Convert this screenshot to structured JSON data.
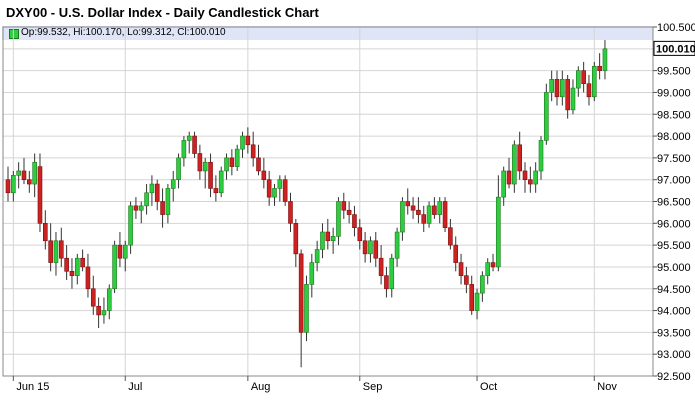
{
  "header": {
    "title": "DXY00 - U.S. Dollar Index - Daily Candlestick Chart",
    "ohlc": "Op:99.532, Hi:100.170, Lo:99.312, Cl:100.010"
  },
  "colors": {
    "up": "#2ecc40",
    "down": "#cc2222",
    "grid": "#d4d4d4",
    "wick": "#333333"
  },
  "chart_data": {
    "type": "candlestick",
    "title": "DXY00 - U.S. Dollar Index - Daily Candlestick Chart",
    "ylim": [
      92.5,
      100.5
    ],
    "y_ticks": [
      "100.500",
      "100.000",
      "99.500",
      "99.000",
      "98.500",
      "98.000",
      "97.500",
      "97.000",
      "96.500",
      "96.000",
      "95.500",
      "95.000",
      "94.500",
      "94.000",
      "93.500",
      "93.000",
      "92.500"
    ],
    "x_labels": [
      "Jun 15",
      "Jul",
      "Aug",
      "Sep",
      "Oct",
      "Nov"
    ],
    "x_label_index": [
      1,
      22,
      45,
      66,
      88,
      110
    ],
    "last_price": "100.010",
    "grid": true,
    "candles": [
      [
        97.0,
        97.3,
        96.5,
        96.7
      ],
      [
        96.7,
        97.2,
        96.5,
        97.1
      ],
      [
        97.1,
        97.4,
        96.8,
        97.2
      ],
      [
        97.2,
        97.5,
        96.9,
        97.0
      ],
      [
        97.0,
        97.2,
        96.7,
        96.9
      ],
      [
        96.9,
        97.6,
        96.6,
        97.4
      ],
      [
        97.3,
        97.6,
        95.8,
        96.0
      ],
      [
        96.0,
        96.3,
        95.4,
        95.6
      ],
      [
        95.6,
        96.0,
        94.9,
        95.1
      ],
      [
        95.1,
        95.8,
        94.8,
        95.6
      ],
      [
        95.6,
        95.9,
        95.0,
        95.2
      ],
      [
        95.2,
        95.5,
        94.7,
        94.9
      ],
      [
        94.9,
        95.2,
        94.5,
        94.8
      ],
      [
        94.8,
        95.3,
        94.6,
        95.2
      ],
      [
        95.2,
        95.4,
        94.9,
        95.0
      ],
      [
        95.0,
        95.3,
        94.3,
        94.5
      ],
      [
        94.5,
        94.8,
        93.9,
        94.1
      ],
      [
        94.1,
        94.3,
        93.6,
        93.9
      ],
      [
        93.9,
        94.3,
        93.7,
        94.0
      ],
      [
        94.0,
        94.6,
        93.8,
        94.5
      ],
      [
        94.5,
        95.6,
        94.4,
        95.5
      ],
      [
        95.5,
        95.8,
        95.0,
        95.2
      ],
      [
        95.2,
        95.6,
        94.9,
        95.5
      ],
      [
        95.5,
        96.5,
        95.3,
        96.4
      ],
      [
        96.4,
        96.6,
        96.1,
        96.3
      ],
      [
        96.3,
        96.5,
        96.0,
        96.4
      ],
      [
        96.4,
        96.9,
        96.2,
        96.7
      ],
      [
        96.7,
        97.1,
        96.4,
        96.9
      ],
      [
        96.9,
        97.0,
        96.3,
        96.5
      ],
      [
        96.5,
        96.8,
        95.9,
        96.2
      ],
      [
        96.2,
        96.9,
        96.0,
        96.8
      ],
      [
        96.8,
        97.2,
        96.5,
        97.0
      ],
      [
        97.0,
        97.6,
        96.8,
        97.5
      ],
      [
        97.5,
        98.0,
        97.3,
        97.9
      ],
      [
        97.9,
        98.1,
        97.6,
        98.0
      ],
      [
        98.0,
        98.1,
        97.5,
        97.6
      ],
      [
        97.6,
        97.8,
        97.0,
        97.2
      ],
      [
        97.2,
        97.5,
        96.8,
        97.4
      ],
      [
        97.4,
        97.6,
        96.6,
        96.8
      ],
      [
        96.8,
        97.1,
        96.5,
        96.7
      ],
      [
        96.7,
        97.3,
        96.6,
        97.2
      ],
      [
        97.2,
        97.6,
        97.0,
        97.5
      ],
      [
        97.5,
        97.7,
        97.1,
        97.3
      ],
      [
        97.3,
        97.8,
        97.2,
        97.7
      ],
      [
        97.7,
        98.1,
        97.5,
        98.0
      ],
      [
        98.0,
        98.2,
        97.6,
        97.8
      ],
      [
        97.8,
        98.1,
        97.3,
        97.5
      ],
      [
        97.5,
        97.8,
        97.1,
        97.2
      ],
      [
        97.2,
        97.5,
        96.8,
        97.0
      ],
      [
        97.0,
        97.2,
        96.4,
        96.6
      ],
      [
        96.6,
        96.9,
        96.4,
        96.8
      ],
      [
        96.8,
        97.1,
        96.5,
        97.0
      ],
      [
        97.0,
        97.1,
        96.4,
        96.5
      ],
      [
        96.5,
        96.7,
        95.8,
        96.0
      ],
      [
        96.0,
        96.1,
        95.0,
        95.3
      ],
      [
        95.3,
        95.4,
        92.7,
        93.5
      ],
      [
        93.5,
        94.8,
        93.3,
        94.6
      ],
      [
        94.6,
        95.3,
        94.3,
        95.1
      ],
      [
        95.1,
        95.6,
        94.9,
        95.4
      ],
      [
        95.4,
        96.0,
        95.2,
        95.8
      ],
      [
        95.8,
        96.1,
        95.4,
        95.6
      ],
      [
        95.6,
        95.9,
        95.3,
        95.7
      ],
      [
        95.7,
        96.6,
        95.5,
        96.5
      ],
      [
        96.5,
        96.7,
        96.1,
        96.3
      ],
      [
        96.3,
        96.5,
        96.0,
        96.2
      ],
      [
        96.2,
        96.4,
        95.7,
        95.9
      ],
      [
        95.9,
        96.1,
        95.4,
        95.6
      ],
      [
        95.6,
        95.8,
        95.1,
        95.3
      ],
      [
        95.3,
        95.7,
        95.1,
        95.6
      ],
      [
        95.6,
        95.8,
        95.0,
        95.2
      ],
      [
        95.2,
        95.5,
        94.6,
        94.8
      ],
      [
        94.8,
        95.0,
        94.3,
        94.5
      ],
      [
        94.5,
        95.3,
        94.3,
        95.2
      ],
      [
        95.2,
        95.9,
        95.0,
        95.8
      ],
      [
        95.8,
        96.6,
        95.6,
        96.5
      ],
      [
        96.5,
        96.8,
        96.2,
        96.4
      ],
      [
        96.4,
        96.6,
        96.1,
        96.3
      ],
      [
        96.3,
        96.6,
        96.0,
        96.2
      ],
      [
        96.2,
        96.4,
        95.8,
        96.0
      ],
      [
        96.0,
        96.5,
        95.9,
        96.4
      ],
      [
        96.4,
        96.6,
        96.1,
        96.2
      ],
      [
        96.2,
        96.6,
        96.0,
        96.5
      ],
      [
        96.5,
        96.6,
        95.8,
        95.9
      ],
      [
        95.9,
        96.1,
        95.4,
        95.5
      ],
      [
        95.5,
        95.7,
        94.9,
        95.1
      ],
      [
        95.1,
        95.3,
        94.6,
        94.8
      ],
      [
        94.8,
        95.0,
        94.4,
        94.6
      ],
      [
        94.6,
        94.8,
        93.9,
        94.0
      ],
      [
        94.0,
        94.5,
        93.8,
        94.4
      ],
      [
        94.4,
        94.9,
        94.2,
        94.8
      ],
      [
        94.8,
        95.2,
        94.6,
        95.1
      ],
      [
        95.1,
        95.3,
        94.9,
        95.0
      ],
      [
        95.0,
        97.1,
        94.9,
        96.6
      ],
      [
        96.6,
        97.3,
        96.4,
        97.2
      ],
      [
        97.2,
        97.5,
        96.8,
        96.9
      ],
      [
        96.9,
        97.9,
        96.7,
        97.8
      ],
      [
        97.8,
        98.1,
        97.0,
        97.2
      ],
      [
        97.2,
        97.4,
        96.7,
        97.0
      ],
      [
        97.0,
        97.3,
        96.7,
        96.9
      ],
      [
        96.9,
        97.4,
        96.7,
        97.2
      ],
      [
        97.2,
        98.0,
        97.0,
        97.9
      ],
      [
        97.9,
        99.2,
        97.8,
        99.0
      ],
      [
        99.0,
        99.5,
        98.8,
        99.3
      ],
      [
        99.3,
        99.5,
        98.7,
        98.9
      ],
      [
        98.9,
        99.5,
        98.7,
        99.3
      ],
      [
        99.3,
        99.4,
        98.4,
        98.6
      ],
      [
        98.6,
        99.3,
        98.5,
        99.1
      ],
      [
        99.1,
        99.6,
        98.9,
        99.5
      ],
      [
        99.5,
        99.7,
        99.0,
        99.2
      ],
      [
        99.2,
        99.4,
        98.7,
        98.9
      ],
      [
        98.9,
        99.7,
        98.8,
        99.6
      ],
      [
        99.6,
        99.9,
        99.3,
        99.5
      ],
      [
        99.5,
        100.2,
        99.3,
        100.0
      ]
    ]
  }
}
